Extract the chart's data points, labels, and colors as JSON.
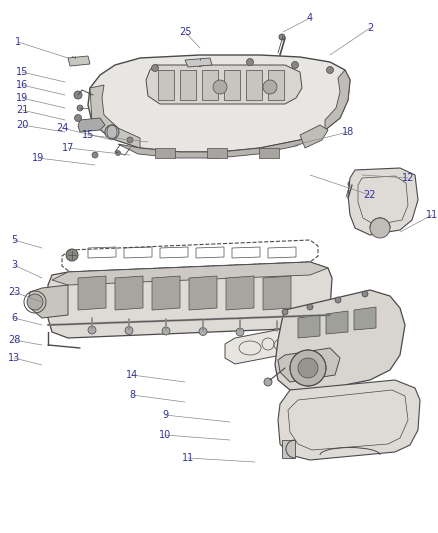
{
  "bg_color": "#ffffff",
  "line_color": "#4a4a4a",
  "label_color": "#333399",
  "figsize": [
    4.38,
    5.33
  ],
  "dpi": 100,
  "label_fontsize": 7.0
}
